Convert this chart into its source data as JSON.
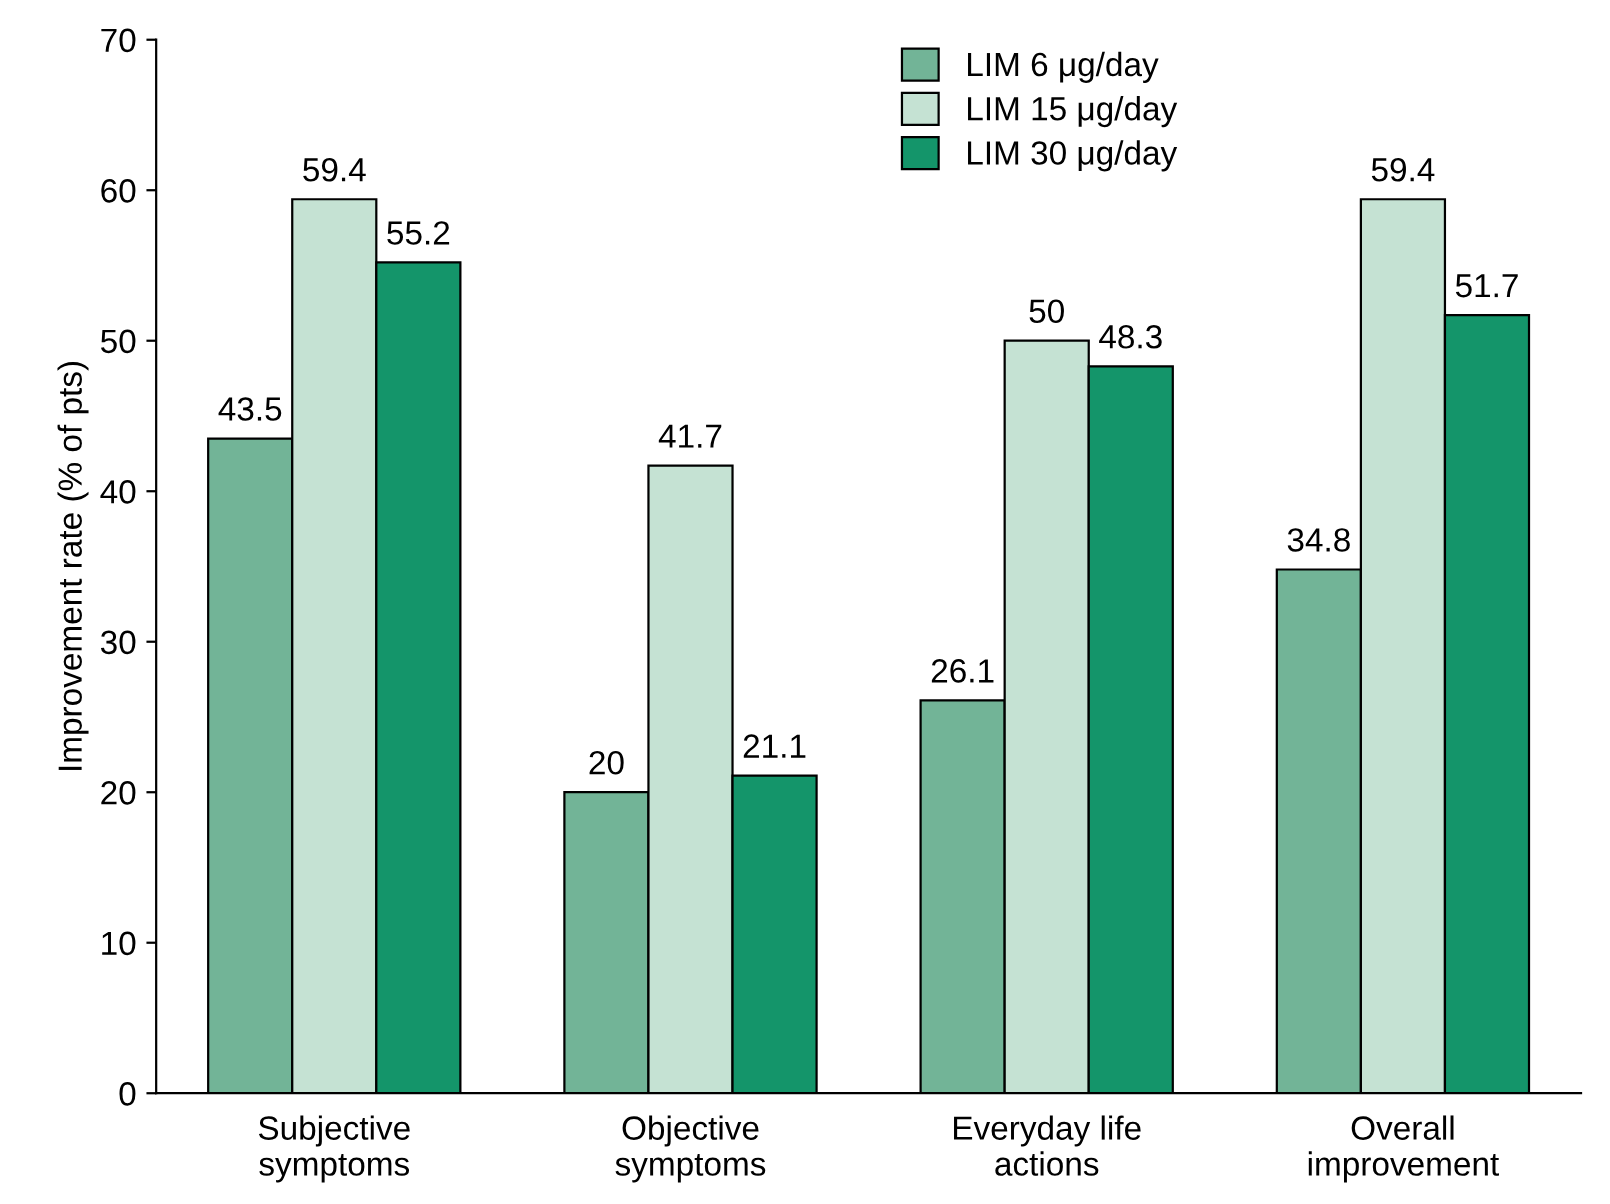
{
  "chart_data": {
    "type": "bar",
    "ylabel": "Improvement rate (% of pts)",
    "categories": [
      "Subjective\nsymptoms",
      "Objective\nsymptoms",
      "Everyday life\nactions",
      "Overall\nimprovement"
    ],
    "series": [
      {
        "name": "LIM 6 μg/day",
        "color": "#72b497",
        "values": [
          43.5,
          20,
          26.1,
          34.8
        ]
      },
      {
        "name": "LIM 15 μg/day",
        "color": "#c5e2d3",
        "values": [
          59.4,
          41.7,
          50,
          59.4
        ]
      },
      {
        "name": "LIM 30 μg/day",
        "color": "#14956a",
        "values": [
          55.2,
          21.1,
          48.3,
          51.7
        ]
      }
    ],
    "ylim": [
      0,
      70
    ],
    "yticks": [
      0,
      10,
      20,
      30,
      40,
      50,
      60,
      70
    ],
    "data_labels": true,
    "legend": "top",
    "grid": false
  }
}
